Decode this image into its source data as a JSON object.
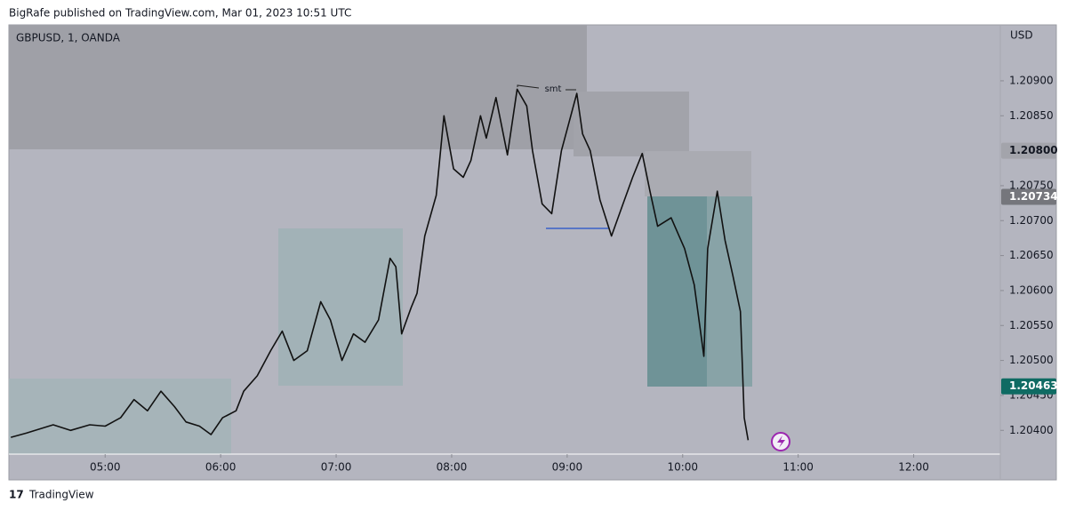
{
  "header": "BigRafe published on TradingView.com, Mar 01, 2023 10:51 UTC",
  "footer": "TradingView",
  "chart_data": {
    "type": "line",
    "title": "GBPUSD, 1, OANDA",
    "y_unit": "USD",
    "color": "#111111",
    "annotation": "smt",
    "x": [
      251,
      259,
      273,
      282,
      292,
      300,
      308,
      315,
      322,
      329,
      336,
      342,
      349,
      355,
      361,
      368,
      372,
      379,
      386,
      392,
      398,
      405,
      412,
      417,
      423,
      429,
      435,
      442,
      448,
      451,
      454,
      459,
      462,
      466,
      472,
      476,
      481,
      486,
      490,
      495,
      498,
      503,
      509,
      514,
      519,
      522,
      527,
      532,
      537,
      545,
      548,
      552,
      557,
      563,
      569,
      574,
      579,
      583,
      587,
      594,
      601,
      606,
      611,
      613,
      618,
      622,
      626,
      630,
      632,
      634
    ],
    "values": [
      1.2039,
      1.20396,
      1.20408,
      1.204,
      1.20408,
      1.20406,
      1.20418,
      1.20444,
      1.20428,
      1.20456,
      1.20434,
      1.20412,
      1.20406,
      1.20394,
      1.20418,
      1.20428,
      1.20456,
      1.20478,
      1.20514,
      1.20542,
      1.205,
      1.20514,
      1.20584,
      1.20558,
      1.205,
      1.20538,
      1.20526,
      1.20558,
      1.20646,
      1.20634,
      1.20538,
      1.20576,
      1.20596,
      1.20678,
      1.20736,
      1.2085,
      1.20774,
      1.20762,
      1.20786,
      1.2085,
      1.20818,
      1.20876,
      1.20794,
      1.20888,
      1.20864,
      1.208,
      1.20724,
      1.2071,
      1.208,
      1.20882,
      1.20824,
      1.208,
      1.2073,
      1.20678,
      1.20724,
      1.20762,
      1.20796,
      1.20742,
      1.20692,
      1.20704,
      1.2066,
      1.20608,
      1.20506,
      1.2066,
      1.20742,
      1.20672,
      1.20622,
      1.2057,
      1.20418,
      1.20386
    ],
    "xlim": [
      250,
      765
    ],
    "xticks": [
      {
        "value": 300,
        "label": "05:00"
      },
      {
        "value": 360,
        "label": "06:00"
      },
      {
        "value": 420,
        "label": "07:00"
      },
      {
        "value": 480,
        "label": "08:00"
      },
      {
        "value": 540,
        "label": "09:00"
      },
      {
        "value": 600,
        "label": "10:00"
      },
      {
        "value": 660,
        "label": "11:00"
      },
      {
        "value": 720,
        "label": "12:00"
      }
    ],
    "ylim": [
      1.20366,
      1.2098
    ],
    "yticks": [
      {
        "value": 1.204,
        "label": "1.20400"
      },
      {
        "value": 1.2045,
        "label": "1.20450"
      },
      {
        "value": 1.205,
        "label": "1.20500"
      },
      {
        "value": 1.2055,
        "label": "1.20550"
      },
      {
        "value": 1.206,
        "label": "1.20600"
      },
      {
        "value": 1.2065,
        "label": "1.20650"
      },
      {
        "value": 1.207,
        "label": "1.20700"
      },
      {
        "value": 1.2075,
        "label": "1.20750"
      },
      {
        "value": 1.2085,
        "label": "1.20850"
      },
      {
        "value": 1.209,
        "label": "1.20900"
      }
    ],
    "price_markers": [
      {
        "value": 1.208,
        "label": "1.20800",
        "color": "#a3a4ab"
      },
      {
        "value": 1.20734,
        "label": "1.20734",
        "color": "#75767c"
      },
      {
        "value": 1.20463,
        "label": "1.20463",
        "color": "#0f6b63"
      }
    ]
  }
}
